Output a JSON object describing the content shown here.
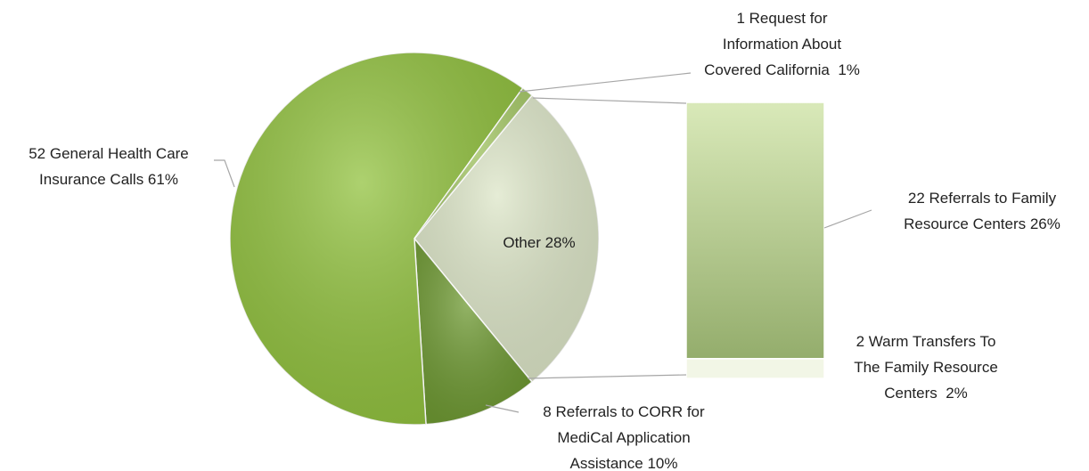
{
  "chart_data": {
    "type": "bar-of-pie",
    "categories": [
      "Other 28%",
      "8 Referrals to CORR for MediCal Application Assistance 10%",
      "52 General Health Care Insurance Calls 61%",
      "1 Request for Information About Covered California  1%"
    ],
    "values": [
      28,
      10,
      61,
      1
    ],
    "colors": [
      "#dde6c8",
      "#6f9a33",
      "#92c23f",
      "#a9cc6a"
    ],
    "secondary": {
      "categories": [
        "22 Referrals to Family Resource Centers 26%",
        "2 Warm Transfers To The Family Resource Centers  2%"
      ],
      "values": [
        26,
        2
      ],
      "colors": [
        "#b8cf94",
        "#f2f6e6"
      ]
    }
  }
}
